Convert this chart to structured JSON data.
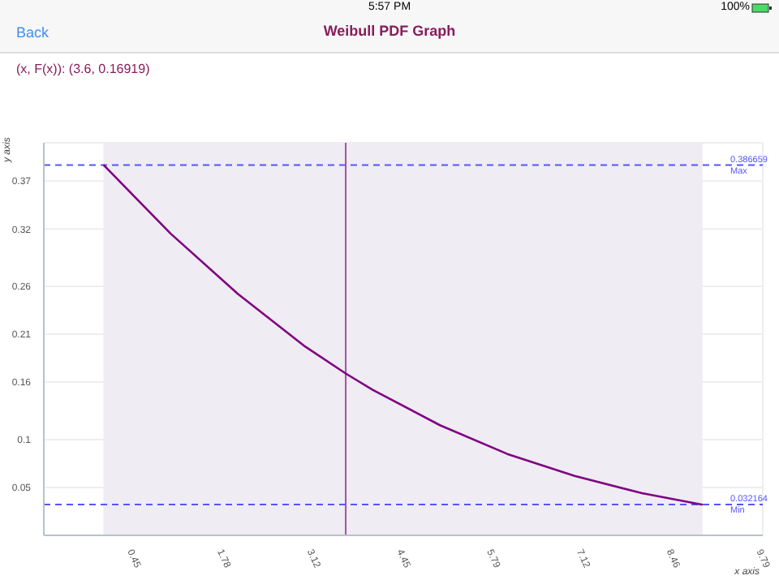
{
  "chart_data": {
    "type": "line",
    "title": "Weibull PDF Graph",
    "subtitle": "(x, F(x)): (3.6, 0.16919)",
    "annotations": [
      "Back",
      "5:57 PM",
      "100%",
      {
        "text": "0.386659",
        "y": 0.386659
      },
      {
        "text": "0.032164",
        "y": 0.032164
      }
    ],
    "xlabel": "x axis",
    "ylabel": "y axis",
    "x": [
      0,
      1,
      2,
      3,
      3.6,
      4,
      5,
      6,
      7,
      8,
      8.9
    ],
    "series": [
      {
        "color": "#800080",
        "values": [
          0.387,
          0.315,
          0.252,
          0.197,
          0.169,
          0.152,
          0.115,
          0.085,
          0.062,
          0.044,
          0.032
        ]
      }
    ],
    "xlim": [
      -0.885,
      9.795
    ],
    "xticks": [
      {
        "value": 0.45,
        "label": "0.45"
      },
      {
        "value": 1.785,
        "label": "1.78"
      },
      {
        "value": 3.12,
        "label": "3.12"
      },
      {
        "value": 4.455,
        "label": "4.45"
      },
      {
        "value": 5.79,
        "label": "5.79"
      },
      {
        "value": 7.125,
        "label": "7.12"
      },
      {
        "value": 8.46,
        "label": "8.46"
      },
      {
        "value": 9.795,
        "label": "9.79"
      }
    ],
    "ylim": [
      0,
      0.41
    ],
    "yticks": [
      0.05,
      0.1,
      0.16,
      0.21,
      0.26,
      0.32,
      0.37
    ],
    "ref_lines": [
      {
        "axis": "y",
        "value": 0.386659,
        "label": "Max",
        "color": "#5555ff",
        "line_style": "dashed"
      },
      {
        "axis": "y",
        "value": 0.032164,
        "label": "Min",
        "color": "#5555ff",
        "line_style": "dashed"
      },
      {
        "axis": "x",
        "value": 3.6,
        "color": "#a050a8",
        "line_style": "solid"
      }
    ],
    "bands": [
      {
        "axis": "x",
        "from": 0,
        "to": 8.9,
        "color": "#efecf3"
      }
    ],
    "grid": true,
    "marker": "none",
    "line_style": "solid",
    "legend": false
  }
}
